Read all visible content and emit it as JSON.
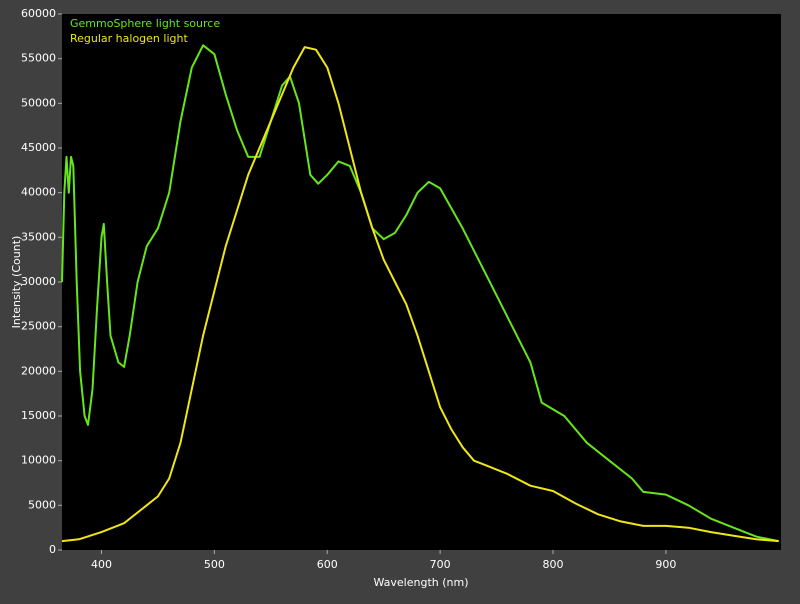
{
  "chart_data": {
    "type": "line",
    "xlabel": "Wavelength (nm)",
    "ylabel": "Intensity (Count)",
    "xlim": [
      365,
      1002
    ],
    "xticks": [
      400,
      500,
      600,
      700,
      800,
      900
    ],
    "ylim": [
      0,
      60000
    ],
    "yticks": [
      0,
      5000,
      10000,
      15000,
      20000,
      25000,
      30000,
      35000,
      40000,
      45000,
      50000,
      55000,
      60000
    ],
    "legend": "upper left",
    "series": [
      {
        "name": "GemmoSphere light source",
        "color": "#66e619",
        "x": [
          365,
          367,
          369,
          371,
          373,
          375,
          378,
          381,
          385,
          388,
          392,
          396,
          400,
          402,
          405,
          408,
          415,
          420,
          425,
          432,
          440,
          450,
          460,
          470,
          480,
          490,
          500,
          510,
          520,
          530,
          540,
          550,
          560,
          567,
          575,
          585,
          592,
          600,
          610,
          620,
          630,
          640,
          650,
          660,
          670,
          680,
          690,
          700,
          720,
          740,
          760,
          780,
          790,
          810,
          830,
          850,
          870,
          880,
          900,
          920,
          940,
          960,
          980,
          1000
        ],
        "values": [
          30000,
          40000,
          44000,
          40000,
          44000,
          43000,
          30000,
          20000,
          15000,
          14000,
          18000,
          27000,
          35000,
          36500,
          30000,
          24000,
          21000,
          20500,
          24000,
          30000,
          34000,
          36000,
          40000,
          48000,
          54000,
          56500,
          55500,
          51000,
          47000,
          44000,
          44000,
          48000,
          52000,
          53000,
          50000,
          42000,
          41000,
          42000,
          43500,
          43000,
          40000,
          36000,
          34800,
          35500,
          37500,
          40000,
          41200,
          40500,
          36000,
          31000,
          26000,
          21000,
          16500,
          15000,
          12000,
          10000,
          8000,
          6500,
          6200,
          5000,
          3500,
          2500,
          1500,
          1000
        ]
      },
      {
        "name": "Regular halogen light",
        "color": "#f0e614",
        "x": [
          365,
          380,
          400,
          420,
          440,
          450,
          460,
          470,
          480,
          490,
          500,
          510,
          520,
          530,
          540,
          550,
          560,
          570,
          580,
          590,
          600,
          610,
          620,
          630,
          640,
          650,
          660,
          670,
          680,
          690,
          700,
          710,
          720,
          730,
          740,
          760,
          780,
          800,
          820,
          840,
          860,
          880,
          900,
          920,
          940,
          960,
          980,
          1000
        ],
        "values": [
          1000,
          1200,
          2000,
          3000,
          5000,
          6000,
          8000,
          12000,
          18000,
          24000,
          29000,
          34000,
          38000,
          42000,
          45000,
          48000,
          51000,
          54000,
          56300,
          56000,
          54000,
          50000,
          45000,
          40000,
          36000,
          32500,
          30000,
          27500,
          24000,
          20000,
          16000,
          13500,
          11500,
          10000,
          9500,
          8500,
          7200,
          6600,
          5200,
          4000,
          3200,
          2700,
          2700,
          2500,
          2000,
          1600,
          1200,
          1000
        ]
      }
    ]
  }
}
